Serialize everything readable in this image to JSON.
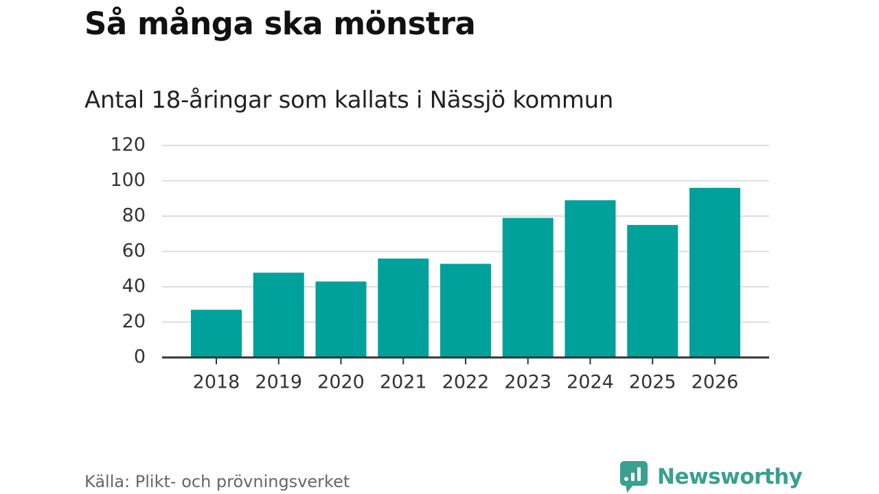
{
  "chart_data": {
    "type": "bar",
    "title": "Så många ska mönstra",
    "subtitle": "Antal 18-åringar som kallats i Nässjö kommun",
    "categories": [
      "2018",
      "2019",
      "2020",
      "2021",
      "2022",
      "2023",
      "2024",
      "2025",
      "2026"
    ],
    "values": [
      27,
      48,
      43,
      56,
      53,
      79,
      89,
      75,
      96
    ],
    "yticks": [
      0,
      20,
      40,
      60,
      80,
      100,
      120
    ],
    "ylim": [
      0,
      120
    ],
    "xlabel": "",
    "ylabel": "",
    "grid": true,
    "bar_color": "#00a19a",
    "grid_color": "#dddddd",
    "axis_color": "#333333"
  },
  "source": "Källa: Plikt- och prövningsverket",
  "brand": {
    "name": "Newsworthy",
    "icon": "newsworthy-logo-icon",
    "color": "#3aa08f"
  }
}
